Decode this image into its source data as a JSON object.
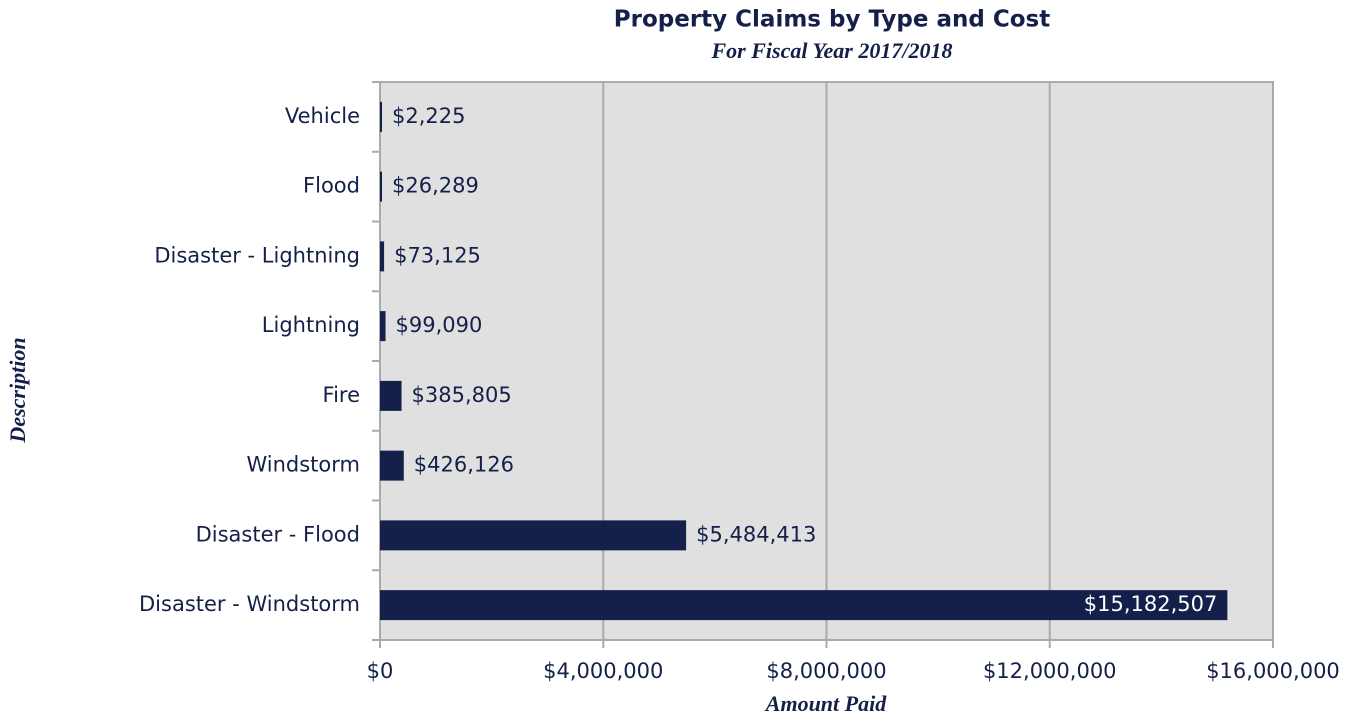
{
  "chart_data": {
    "type": "hbar",
    "title": "Property Claims by Type and Cost",
    "subtitle": "For Fiscal Year 2017/2018",
    "x_label": "Amount Paid",
    "y_label": "Description",
    "categories": [
      "Vehicle",
      "Flood",
      "Disaster - Lightning",
      "Lightning",
      "Fire",
      "Windstorm",
      "Disaster - Flood",
      "Disaster - Windstorm"
    ],
    "values": [
      2225,
      26289,
      73125,
      99090,
      385805,
      426126,
      5484413,
      15182507
    ],
    "value_labels": [
      "$2,225",
      "$26,289",
      "$73,125",
      "$99,090",
      "$385,805",
      "$426,126",
      "$5,484,413",
      "$15,182,507"
    ],
    "color": "#15204a",
    "xlim": [
      0,
      16000000
    ],
    "xticks": [
      {
        "value": 0,
        "label": "$0"
      },
      {
        "value": 4000000,
        "label": "$4,000,000"
      },
      {
        "value": 8000000,
        "label": "$8,000,000"
      },
      {
        "value": 12000000,
        "label": "$12,000,000"
      },
      {
        "value": 16000000,
        "label": "$16,000,000"
      }
    ],
    "grid": true
  }
}
